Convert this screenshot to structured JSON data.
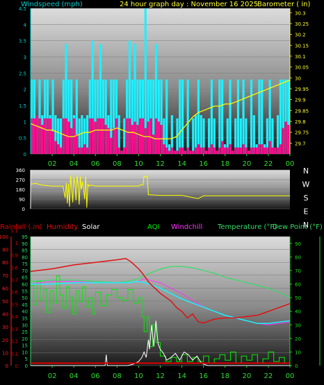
{
  "header": {
    "windspeed_label": "Windspeed (mph)",
    "title": "24 hour graph day : November 16 2025",
    "barometer_label": "Barometer ( in)"
  },
  "colors": {
    "wind_avg": "#ff0a8c",
    "wind_gust": "#1ff0ff",
    "barometer": "#ffff00",
    "axis_left": "#00cccc",
    "axis_right": "#ffff33",
    "x_ticks": "#33dd33",
    "direction": "#ffff00",
    "rain": "#e00000",
    "humidity": "#e01010",
    "solar": "#ffffff",
    "aqi": "#00ee00",
    "windchill": "#ff33ff",
    "temperature": "#33dd66",
    "dewpoint": "#1ff0ff",
    "bottom_left_outer": "#ff2222",
    "bottom_right_axis": "#22dd22"
  },
  "x_ticks": [
    "02",
    "04",
    "06",
    "08",
    "10",
    "12",
    "14",
    "16",
    "18",
    "20",
    "22",
    "00"
  ],
  "wind_chart": {
    "type": "bar",
    "x_range_hours": [
      0,
      24
    ],
    "wind_axis": {
      "range": [
        0,
        4.5
      ],
      "ticks": [
        "0",
        "0.5",
        "1",
        "1.5",
        "2",
        "2.5",
        "3",
        "3.5",
        "4",
        "4.5"
      ]
    },
    "baro_axis": {
      "range": [
        29.65,
        30.32
      ],
      "ticks": [
        "29.7",
        "29.75",
        "29.8",
        "29.85",
        "29.9",
        "29.95",
        "30",
        "30.05",
        "30.1",
        "30.15",
        "30.2",
        "30.25",
        "30.3"
      ]
    },
    "avg_wind_mph": [
      1.1,
      1.1,
      1.2,
      1.1,
      0.9,
      1.1,
      1.1,
      1.1,
      0.7,
      0.4,
      0.3,
      0.2,
      1.1,
      1.1,
      1.0,
      0.8,
      1.1,
      0.6,
      0.2,
      0.2,
      0.3,
      0.2,
      1.1,
      1.1,
      1.0,
      1.1,
      1.1,
      1.1,
      0.9,
      0.8,
      0.5,
      0.8,
      1.1,
      0.2,
      0.1,
      0.2,
      1.1,
      1.1,
      0.9,
      1.0,
      0.9,
      1.1,
      1.1,
      0.8,
      1.0,
      1.1,
      0.6,
      1.1,
      1.0,
      0.9,
      0.3,
      0.2,
      0.1,
      0.2,
      0.1,
      0.1,
      0.2,
      0.2,
      0.1,
      0.2,
      0.1,
      0.1,
      0.2,
      0.3,
      0.2,
      0.2,
      0.1,
      0.2,
      0.3,
      0.2,
      0.1,
      0.2,
      0.4,
      0.2,
      0.2,
      0.3,
      0.1,
      0.2,
      0.2,
      0.2,
      0.3,
      0.2,
      0.1,
      0.2,
      0.2,
      0.2,
      0.3,
      0.3,
      0.2,
      0.2,
      0.4,
      0.2,
      0.2,
      0.2,
      0.3,
      0.8,
      1.0,
      0.9
    ],
    "gust_wind_mph": [
      2.3,
      2.3,
      1.2,
      2.3,
      1.2,
      2.3,
      2.3,
      1.2,
      2.3,
      1.2,
      1.1,
      1.1,
      2.3,
      3.4,
      2.3,
      2.3,
      1.2,
      2.3,
      1.1,
      1.2,
      1.1,
      1.2,
      2.3,
      3.5,
      2.3,
      2.3,
      3.4,
      2.3,
      2.3,
      1.2,
      2.3,
      2.3,
      2.3,
      1.2,
      0.1,
      1.1,
      2.3,
      3.5,
      2.3,
      3.4,
      2.3,
      2.3,
      2.3,
      4.5,
      2.3,
      2.3,
      2.3,
      3.4,
      2.3,
      2.3,
      1.1,
      2.3,
      0.3,
      1.2,
      0.1,
      1.1,
      2.3,
      2.3,
      0.1,
      2.3,
      0.1,
      1.1,
      1.2,
      2.3,
      1.2,
      1.1,
      0.1,
      1.1,
      2.3,
      1.1,
      0.1,
      2.3,
      2.3,
      0.3,
      1.1,
      2.3,
      0.1,
      1.1,
      2.3,
      1.1,
      2.3,
      1.1,
      0.1,
      2.3,
      1.2,
      0.3,
      2.3,
      2.3,
      0.3,
      1.1,
      2.3,
      1.1,
      0.1,
      1.2,
      2.3,
      2.3,
      2.3,
      2.3
    ],
    "barometer_in": [
      29.79,
      29.78,
      29.77,
      29.76,
      29.76,
      29.75,
      29.74,
      29.73,
      29.73,
      29.74,
      29.75,
      29.75,
      29.76,
      29.76,
      29.76,
      29.76,
      29.77,
      29.76,
      29.75,
      29.75,
      29.74,
      29.73,
      29.73,
      29.72,
      29.72,
      29.72,
      29.72,
      29.73,
      29.76,
      29.79,
      29.82,
      29.84,
      29.85,
      29.86,
      29.87,
      29.87,
      29.88,
      29.88,
      29.89,
      29.9,
      29.91,
      29.92,
      29.93,
      29.94,
      29.95,
      29.96,
      29.97,
      29.98,
      29.99
    ]
  },
  "direction_chart": {
    "type": "line",
    "axis": {
      "range": [
        0,
        360
      ],
      "ticks": [
        "0",
        "90",
        "180",
        "270",
        "360"
      ]
    },
    "compass": [
      "N",
      "W",
      "S",
      "E",
      "N"
    ],
    "points": [
      [
        0,
        230
      ],
      [
        0.5,
        235
      ],
      [
        1,
        220
      ],
      [
        2,
        210
      ],
      [
        3,
        210
      ],
      [
        3.2,
        100
      ],
      [
        3.3,
        240
      ],
      [
        3.4,
        50
      ],
      [
        3.5,
        230
      ],
      [
        3.6,
        20
      ],
      [
        3.7,
        310
      ],
      [
        3.8,
        200
      ],
      [
        3.9,
        60
      ],
      [
        4,
        290
      ],
      [
        4.1,
        240
      ],
      [
        4.2,
        80
      ],
      [
        4.3,
        310
      ],
      [
        4.4,
        220
      ],
      [
        4.5,
        40
      ],
      [
        4.6,
        300
      ],
      [
        4.7,
        180
      ],
      [
        4.8,
        250
      ],
      [
        4.9,
        190
      ],
      [
        5,
        90
      ],
      [
        5.1,
        300
      ],
      [
        5.2,
        10
      ],
      [
        5.3,
        230
      ],
      [
        5.4,
        210
      ],
      [
        5.6,
        220
      ],
      [
        6,
        210
      ],
      [
        8,
        210
      ],
      [
        10,
        210
      ],
      [
        10.1,
        220
      ],
      [
        10.4,
        220
      ],
      [
        10.5,
        300
      ],
      [
        10.8,
        300
      ],
      [
        10.9,
        130
      ],
      [
        11,
        130
      ],
      [
        12,
        125
      ],
      [
        14,
        125
      ],
      [
        15,
        105
      ],
      [
        15.5,
        95
      ],
      [
        16,
        120
      ],
      [
        18,
        120
      ],
      [
        20,
        120
      ],
      [
        22,
        120
      ],
      [
        24,
        120
      ]
    ]
  },
  "bottom_chart": {
    "type": "line",
    "legend": {
      "rain": "Rainfall (.in)",
      "humidity": "Humidity",
      "solar": "Solar",
      "aqi": "AQI",
      "windchill": "Windchill",
      "temperature": "Temperature (°F)",
      "dewpoint": "Dew Point (°F)"
    },
    "rain_axis": {
      "range": [
        0,
        1.05
      ],
      "ticks": [
        "0",
        "0.1",
        "0.2",
        "0.3",
        "0.4",
        "0.5",
        "0.6",
        "0.7",
        "0.8",
        "0.9",
        "1",
        "1.1"
      ]
    },
    "humidity_axis": {
      "range": [
        0,
        100
      ],
      "ticks": [
        "0",
        "10",
        "20",
        "30",
        "40",
        "50",
        "60",
        "70",
        "80",
        "90",
        "100"
      ]
    },
    "temp_axis": {
      "range": [
        0,
        95
      ],
      "ticks": [
        "0",
        "5",
        "10",
        "15",
        "20",
        "25",
        "30",
        "35",
        "40",
        "45",
        "50",
        "55",
        "60",
        "65",
        "70",
        "75",
        "80",
        "85",
        "90",
        "95"
      ]
    },
    "right_axis_ticks": [
      "0",
      "10",
      "20",
      "30",
      "40",
      "50",
      "60",
      "70",
      "80",
      "90"
    ],
    "humidity": [
      [
        0,
        73
      ],
      [
        2,
        75
      ],
      [
        4,
        78
      ],
      [
        6,
        80
      ],
      [
        8,
        82
      ],
      [
        8.8,
        83
      ],
      [
        9.2,
        81
      ],
      [
        10,
        75
      ],
      [
        10.4,
        71
      ],
      [
        11,
        64
      ],
      [
        11.5,
        60
      ],
      [
        12,
        56
      ],
      [
        13,
        50
      ],
      [
        13.5,
        45
      ],
      [
        14,
        42
      ],
      [
        14.5,
        37
      ],
      [
        15,
        40
      ],
      [
        15.5,
        34
      ],
      [
        16,
        33
      ],
      [
        17,
        36
      ],
      [
        18,
        37
      ],
      [
        19,
        37
      ],
      [
        20,
        38
      ],
      [
        21,
        39
      ],
      [
        22,
        42
      ],
      [
        23,
        45
      ],
      [
        24,
        48
      ]
    ],
    "temperature": [
      [
        0,
        62
      ],
      [
        2,
        63
      ],
      [
        4,
        63
      ],
      [
        6,
        62
      ],
      [
        8,
        61
      ],
      [
        9,
        62
      ],
      [
        10,
        64
      ],
      [
        11,
        68
      ],
      [
        12,
        71
      ],
      [
        13,
        73
      ],
      [
        14,
        73
      ],
      [
        15,
        72
      ],
      [
        16,
        70
      ],
      [
        17,
        68
      ],
      [
        18,
        65
      ],
      [
        19,
        63
      ],
      [
        20,
        61
      ],
      [
        21,
        59
      ],
      [
        22,
        57
      ],
      [
        23,
        54
      ],
      [
        24,
        50
      ]
    ],
    "dewpoint": [
      [
        0,
        60
      ],
      [
        2,
        60
      ],
      [
        4,
        61
      ],
      [
        6,
        61
      ],
      [
        8,
        61
      ],
      [
        9,
        61
      ],
      [
        10,
        62
      ],
      [
        11,
        60
      ],
      [
        12,
        57
      ],
      [
        13,
        53
      ],
      [
        14,
        49
      ],
      [
        15,
        46
      ],
      [
        16,
        43
      ],
      [
        17,
        40
      ],
      [
        18,
        37
      ],
      [
        19,
        35
      ],
      [
        20,
        33
      ],
      [
        21,
        31
      ],
      [
        22,
        31
      ],
      [
        23,
        32
      ],
      [
        24,
        33
      ]
    ],
    "solar": [
      [
        0,
        0
      ],
      [
        6.9,
        0
      ],
      [
        7,
        8
      ],
      [
        7.1,
        0
      ],
      [
        9,
        0
      ],
      [
        9.5,
        1
      ],
      [
        10,
        3
      ],
      [
        10.3,
        6
      ],
      [
        10.5,
        10
      ],
      [
        10.7,
        6
      ],
      [
        10.9,
        19
      ],
      [
        11,
        12
      ],
      [
        11.2,
        30
      ],
      [
        11.4,
        14
      ],
      [
        11.6,
        33
      ],
      [
        11.8,
        16
      ],
      [
        12,
        12
      ],
      [
        12.3,
        9
      ],
      [
        12.6,
        4
      ],
      [
        13,
        6
      ],
      [
        13.4,
        9
      ],
      [
        13.8,
        4
      ],
      [
        14.2,
        10
      ],
      [
        14.6,
        8
      ],
      [
        15,
        4
      ],
      [
        15.4,
        7
      ],
      [
        15.8,
        2
      ],
      [
        16,
        1
      ],
      [
        16.4,
        0
      ],
      [
        24,
        0
      ]
    ],
    "aqi": [
      [
        0,
        59
      ],
      [
        0.3,
        45
      ],
      [
        0.6,
        62
      ],
      [
        0.9,
        48
      ],
      [
        1.2,
        56
      ],
      [
        1.5,
        39
      ],
      [
        1.8,
        55
      ],
      [
        2.1,
        46
      ],
      [
        2.4,
        66
      ],
      [
        2.7,
        52
      ],
      [
        3,
        42
      ],
      [
        3.3,
        58
      ],
      [
        3.6,
        50
      ],
      [
        3.9,
        38
      ],
      [
        4.2,
        55
      ],
      [
        4.5,
        47
      ],
      [
        4.8,
        58
      ],
      [
        5.1,
        43
      ],
      [
        5.4,
        50
      ],
      [
        5.7,
        38
      ],
      [
        6,
        54
      ],
      [
        6.5,
        44
      ],
      [
        7,
        52
      ],
      [
        7.5,
        56
      ],
      [
        8,
        50
      ],
      [
        8.5,
        48
      ],
      [
        9,
        56
      ],
      [
        9.5,
        46
      ],
      [
        10,
        50
      ],
      [
        10.3,
        36
      ],
      [
        10.5,
        25
      ],
      [
        10.8,
        36
      ],
      [
        11,
        14
      ],
      [
        11.3,
        30
      ],
      [
        11.6,
        17
      ],
      [
        12,
        7
      ],
      [
        12.5,
        3
      ],
      [
        13,
        6
      ],
      [
        13.5,
        3
      ],
      [
        14,
        8
      ],
      [
        14.5,
        3
      ],
      [
        15,
        6
      ],
      [
        15.5,
        3
      ],
      [
        16,
        7
      ],
      [
        16.5,
        2
      ],
      [
        17,
        5
      ],
      [
        17.5,
        8
      ],
      [
        18,
        4
      ],
      [
        18.5,
        10
      ],
      [
        19,
        2
      ],
      [
        19.5,
        7
      ],
      [
        20,
        4
      ],
      [
        20.5,
        8
      ],
      [
        21,
        2
      ],
      [
        21.5,
        5
      ],
      [
        22,
        10
      ],
      [
        22.5,
        3
      ],
      [
        23,
        6
      ],
      [
        23.5,
        2
      ],
      [
        24,
        4
      ]
    ],
    "windchill": [
      [
        0,
        60
      ],
      [
        2,
        62
      ],
      [
        4,
        62
      ],
      [
        6,
        61
      ],
      [
        8,
        61
      ],
      [
        9,
        61
      ],
      [
        10,
        62
      ],
      [
        10.5,
        64
      ],
      [
        11,
        63
      ],
      [
        12,
        61
      ],
      [
        13,
        57
      ],
      [
        14,
        53
      ],
      [
        15,
        48
      ],
      [
        16,
        43
      ],
      [
        17,
        40
      ],
      [
        18,
        37
      ],
      [
        19,
        35
      ],
      [
        20,
        33
      ],
      [
        21,
        31
      ],
      [
        22,
        30
      ],
      [
        23,
        31
      ],
      [
        24,
        32
      ]
    ],
    "rain_in": [
      [
        0,
        0.02
      ],
      [
        24,
        0.02
      ]
    ]
  }
}
